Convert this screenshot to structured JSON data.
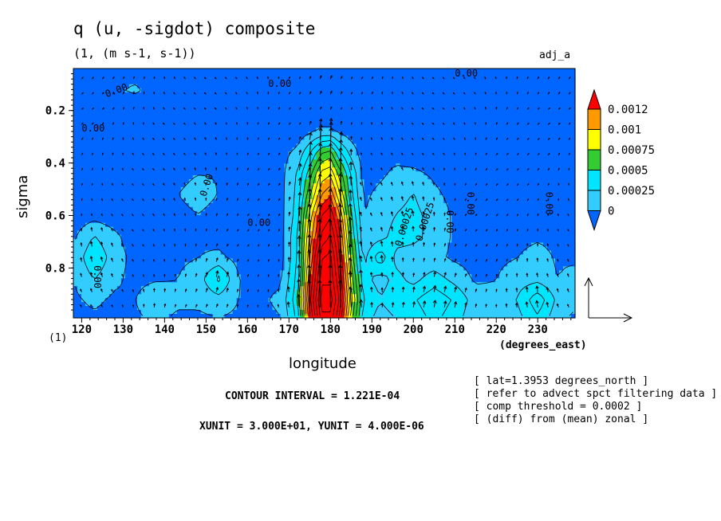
{
  "header": {
    "title": "q (u, -sigdot) composite",
    "subtitle": "(1, (m s-1, s-1))",
    "dataset": "adj_a"
  },
  "footer": {
    "contour_interval": "CONTOUR INTERVAL = 1.221E-04",
    "units": "XUNIT = 3.000E+01, YUNIT = 4.000E-06"
  },
  "notes": [
    "[ lat=1.3953 degrees_north ]",
    "[ refer to advect spct filtering data ]",
    "[ comp threshold = 0.0002 ]",
    "[ (diff) from (mean) zonal ]"
  ],
  "chart_data": {
    "type": "heatmap",
    "title": "q (u, -sigdot) composite",
    "subtitle": "(1, (m s-1, s-1))",
    "xlabel": "longitude",
    "xunit_label": "(degrees_east)",
    "ylabel": "sigma",
    "yunit_label": "(1)",
    "xlim": [
      118,
      239
    ],
    "ylim": [
      0.04,
      0.99
    ],
    "y_inverted": true,
    "xticks": [
      120,
      130,
      140,
      150,
      160,
      170,
      180,
      190,
      200,
      210,
      220,
      230
    ],
    "yticks": [
      0.2,
      0.4,
      0.6,
      0.8
    ],
    "ytick_labels": [
      "0.2",
      "0.4",
      "0.6",
      "0.8"
    ],
    "colorbar": {
      "labels": [
        "0.0012",
        "0.001",
        "0.00075",
        "0.0005",
        "0.00025",
        "0"
      ],
      "colors": [
        "#ff0000",
        "#ff9900",
        "#ffff00",
        "#33cc33",
        "#00e5ff",
        "#33ccff",
        "#0066ff"
      ]
    },
    "contour_labels": [
      "0.00",
      "0.00",
      "0.00",
      "0.00",
      "0.00",
      "0.00",
      "0.00",
      "0.00",
      "0.00",
      "0.00",
      "0.00025",
      "0.00025"
    ],
    "contour_interval": 0.0001221,
    "vector_reference": {
      "xunit": 30.0,
      "yunit": 4e-06
    },
    "field": {
      "x": [
        118,
        123,
        128,
        133,
        138,
        143,
        148,
        153,
        158,
        163,
        168,
        172,
        175,
        178,
        180,
        182,
        185,
        188,
        192,
        196,
        200,
        205,
        210,
        215,
        220,
        225,
        230,
        235,
        239
      ],
      "y": [
        0.04,
        0.12,
        0.2,
        0.28,
        0.36,
        0.44,
        0.52,
        0.6,
        0.68,
        0.76,
        0.84,
        0.92,
        0.99
      ],
      "z": [
        [
          5e-05,
          5e-05,
          5e-05,
          3e-05,
          3e-05,
          5e-05,
          5e-05,
          5e-05,
          3e-05,
          3e-05,
          5e-05,
          5e-05,
          5e-05,
          5e-05,
          5e-05,
          5e-05,
          5e-05,
          5e-05,
          5e-05,
          3e-05,
          3e-05,
          3e-05,
          5e-05,
          5e-05,
          3e-05,
          3e-05,
          5e-05,
          5e-05,
          5e-05
        ],
        [
          3e-05,
          5e-05,
          0.0001,
          0.00015,
          5e-05,
          3e-05,
          3e-05,
          3e-05,
          3e-05,
          5e-05,
          3e-05,
          3e-05,
          5e-05,
          5e-05,
          5e-05,
          5e-05,
          3e-05,
          3e-05,
          5e-05,
          5e-05,
          3e-05,
          3e-05,
          3e-05,
          3e-05,
          3e-05,
          5e-05,
          8e-05,
          8e-05,
          5e-05
        ],
        [
          2e-05,
          2e-05,
          2e-05,
          2e-05,
          2e-05,
          2e-05,
          2e-05,
          2e-05,
          2e-05,
          2e-05,
          2e-05,
          2e-05,
          2e-05,
          3e-05,
          3e-05,
          2e-05,
          2e-05,
          2e-05,
          2e-05,
          2e-05,
          2e-05,
          2e-05,
          2e-05,
          2e-05,
          2e-05,
          2e-05,
          2e-05,
          2e-05,
          2e-05
        ],
        [
          8e-05,
          8e-05,
          5e-05,
          2e-05,
          2e-05,
          3e-05,
          8e-05,
          0.0001,
          8e-05,
          5e-05,
          5e-05,
          5e-05,
          0.0001,
          0.00015,
          0.00015,
          0.0001,
          5e-05,
          3e-05,
          8e-05,
          0.0001,
          5e-05,
          3e-05,
          2e-05,
          2e-05,
          3e-05,
          3e-05,
          3e-05,
          3e-05,
          3e-05
        ],
        [
          8e-05,
          8e-05,
          5e-05,
          3e-05,
          3e-05,
          5e-05,
          8e-05,
          0.0001,
          8e-05,
          5e-05,
          8e-05,
          0.00015,
          0.00035,
          0.0006,
          0.00065,
          0.0004,
          0.0002,
          5e-05,
          8e-05,
          8e-05,
          5e-05,
          3e-05,
          3e-05,
          5e-05,
          3e-05,
          3e-05,
          3e-05,
          3e-05,
          3e-05
        ],
        [
          5e-05,
          5e-05,
          5e-05,
          3e-05,
          5e-05,
          0.0001,
          0.00012,
          0.00012,
          0.0001,
          5e-05,
          8e-05,
          0.00025,
          0.00055,
          0.0009,
          0.00095,
          0.0007,
          0.00035,
          8e-05,
          0.0001,
          0.00015,
          0.00015,
          0.0001,
          5e-05,
          5e-05,
          3e-05,
          3e-05,
          5e-05,
          5e-05,
          3e-05
        ],
        [
          5e-05,
          5e-05,
          5e-05,
          5e-05,
          8e-05,
          0.00012,
          0.00015,
          0.00012,
          0.0001,
          8e-05,
          8e-05,
          0.00028,
          0.0007,
          0.0011,
          0.0012,
          0.0009,
          0.0004,
          0.0001,
          0.00015,
          0.0002,
          0.00025,
          0.00015,
          8e-05,
          5e-05,
          5e-05,
          5e-05,
          5e-05,
          5e-05,
          3e-05
        ],
        [
          5e-05,
          8e-05,
          5e-05,
          5e-05,
          8e-05,
          0.0001,
          0.00012,
          0.0001,
          8e-05,
          5e-05,
          8e-05,
          0.0003,
          0.0009,
          0.00135,
          0.00145,
          0.00115,
          0.0005,
          0.00012,
          0.00018,
          0.00025,
          0.00028,
          0.0002,
          0.0001,
          5e-05,
          5e-05,
          5e-05,
          8e-05,
          5e-05,
          3e-05
        ],
        [
          0.0001,
          0.00025,
          0.00015,
          5e-05,
          8e-05,
          0.0001,
          0.0001,
          8e-05,
          5e-05,
          5e-05,
          8e-05,
          0.00035,
          0.001,
          0.0015,
          0.0016,
          0.0013,
          0.0006,
          0.00015,
          0.0002,
          0.0003,
          0.00028,
          0.0002,
          0.0001,
          5e-05,
          8e-05,
          8e-05,
          0.0001,
          8e-05,
          5e-05
        ],
        [
          0.00015,
          0.00035,
          0.00018,
          8e-05,
          8e-05,
          0.0001,
          0.00012,
          0.00015,
          8e-05,
          5e-05,
          8e-05,
          0.00035,
          0.0011,
          0.0017,
          0.00175,
          0.0014,
          0.0007,
          0.0002,
          0.00045,
          0.0002,
          0.00018,
          0.00015,
          0.0001,
          8e-05,
          0.0001,
          0.00012,
          0.00018,
          0.0001,
          8e-05
        ],
        [
          0.00012,
          0.00025,
          0.00015,
          8e-05,
          0.0001,
          0.00012,
          0.00018,
          0.0004,
          0.00012,
          8e-05,
          0.0001,
          0.0004,
          0.0012,
          0.0018,
          0.0018,
          0.0015,
          0.0008,
          0.00028,
          0.0002,
          0.00028,
          0.0002,
          0.0003,
          0.0002,
          0.0001,
          0.00012,
          0.00018,
          0.0002,
          0.00012,
          0.0002
        ],
        [
          0.0001,
          0.00015,
          0.0001,
          0.00012,
          0.00025,
          0.00015,
          0.00015,
          0.0002,
          0.00012,
          0.0001,
          0.00015,
          0.00045,
          0.0013,
          0.0019,
          0.0019,
          0.0016,
          0.0009,
          0.00035,
          0.00025,
          0.0003,
          0.00035,
          0.00045,
          0.00035,
          0.00018,
          0.00015,
          0.00025,
          0.00045,
          0.0002,
          0.00015
        ],
        [
          8e-05,
          0.0001,
          8e-05,
          0.0001,
          0.00015,
          0.0001,
          0.0001,
          0.00012,
          0.0001,
          8e-05,
          0.00012,
          0.0004,
          0.0012,
          0.0018,
          0.0018,
          0.0015,
          0.0008,
          0.0003,
          0.0002,
          0.00025,
          0.0003,
          0.0004,
          0.0003,
          0.00015,
          0.00012,
          0.0002,
          0.00035,
          0.00015,
          0.0001
        ]
      ]
    }
  }
}
